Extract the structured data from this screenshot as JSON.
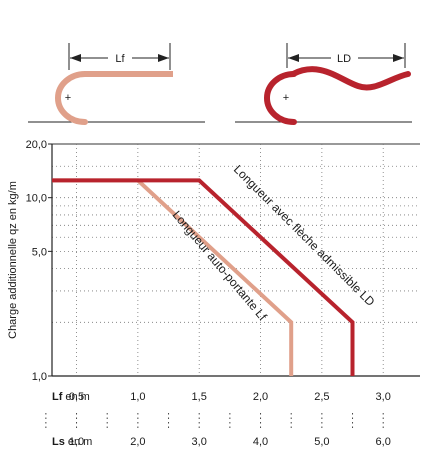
{
  "diagrams": {
    "left": {
      "dimension_label": "Lf",
      "plus_sign": "+"
    },
    "right": {
      "dimension_label": "LD",
      "plus_sign": "+"
    }
  },
  "chart_data": {
    "type": "line",
    "ylabel": "Charge additionnelle qz en kg/m",
    "y_scale": "log",
    "ylim": [
      1.0,
      20.0
    ],
    "yticks": [
      "1,0",
      "5,0",
      "10,0",
      "20,0"
    ],
    "ytick_values": [
      1.0,
      5.0,
      10.0,
      20.0
    ],
    "x_axis_primary": {
      "label_bold": "Lf",
      "label_unit": "en m",
      "ticks": [
        "0,5",
        "1,0",
        "1,5",
        "2,0",
        "2,5",
        "3,0"
      ],
      "tick_values": [
        0.5,
        1.0,
        1.5,
        2.0,
        2.5,
        3.0
      ],
      "xlim": [
        0.3,
        3.3
      ]
    },
    "x_axis_secondary": {
      "label_bold": "Ls",
      "label_unit": "en m",
      "ticks": [
        "1,0",
        "2,0",
        "3,0",
        "4,0",
        "5,0",
        "6,0"
      ],
      "tick_values": [
        1.0,
        2.0,
        3.0,
        4.0,
        5.0,
        6.0
      ]
    },
    "grid": true,
    "series": [
      {
        "name": "Longueur auto-portante Lf",
        "color": "#e0a08a",
        "points": [
          [
            0.3,
            12.5
          ],
          [
            1.0,
            12.5
          ],
          [
            2.25,
            2.0
          ],
          [
            2.25,
            1.0
          ]
        ]
      },
      {
        "name": "Longueur avec flèche admissible LD",
        "color": "#b8232d",
        "points": [
          [
            0.3,
            12.5
          ],
          [
            1.5,
            12.5
          ],
          [
            2.75,
            2.0
          ],
          [
            2.75,
            1.0
          ]
        ]
      }
    ]
  }
}
